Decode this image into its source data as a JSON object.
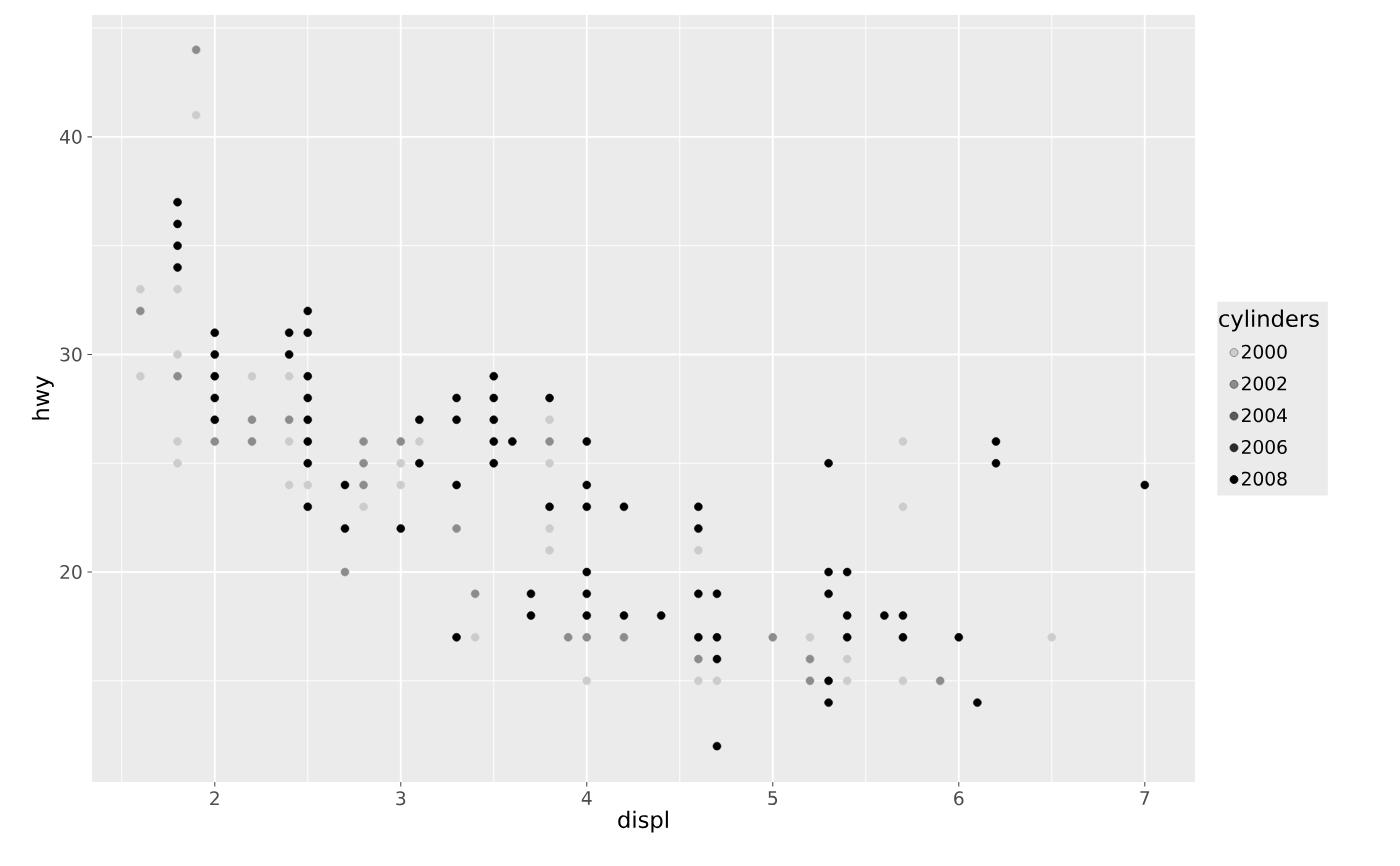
{
  "chart_data": {
    "type": "scatter",
    "xlabel": "displ",
    "ylabel": "hwy",
    "legend_title": "cylinders",
    "xlim": [
      1.34,
      7.27
    ],
    "ylim": [
      10.35,
      45.6
    ],
    "xticks": [
      2,
      3,
      4,
      5,
      6,
      7
    ],
    "yticks": [
      20,
      30,
      40
    ],
    "grid": true,
    "legend": "right",
    "marker": "circle",
    "series": [
      {
        "name": "2000",
        "color": "#cccccc",
        "x": [
          1.6,
          1.6,
          1.8,
          1.8,
          1.8,
          1.8,
          1.9,
          2.2,
          2.4,
          2.4,
          2.4,
          2.5,
          2.8,
          3.0,
          3.0,
          3.1,
          3.4,
          3.8,
          3.8,
          3.8,
          3.8,
          4.0,
          4.6,
          4.6,
          4.7,
          5.2,
          5.4,
          5.4,
          5.7,
          5.7,
          5.7,
          6.5
        ],
        "values": [
          33,
          29,
          33,
          30,
          26,
          25,
          41,
          29,
          29,
          26,
          24,
          24,
          23,
          25,
          24,
          26,
          17,
          27,
          25,
          22,
          21,
          15,
          21,
          15,
          15,
          17,
          16,
          15,
          26,
          23,
          15,
          17
        ]
      },
      {
        "name": "2002",
        "color": "#8c8c8c",
        "x": [
          1.6,
          1.8,
          1.9,
          2.0,
          2.2,
          2.2,
          2.4,
          2.7,
          2.8,
          2.8,
          2.8,
          3.0,
          3.3,
          3.4,
          3.8,
          3.9,
          4.0,
          4.2,
          4.6,
          5.0,
          5.2,
          5.2,
          5.9
        ],
        "values": [
          32,
          29,
          44,
          26,
          27,
          26,
          27,
          20,
          26,
          25,
          24,
          26,
          22,
          19,
          26,
          17,
          17,
          17,
          16,
          17,
          16,
          15,
          15
        ]
      },
      {
        "name": "2004",
        "color": "#595959"
      },
      {
        "name": "2006",
        "color": "#2b2b2b"
      },
      {
        "name": "2008",
        "color": "#000000",
        "x": [
          1.8,
          1.8,
          1.8,
          1.8,
          2.0,
          2.0,
          2.0,
          2.0,
          2.0,
          2.4,
          2.4,
          2.5,
          2.5,
          2.5,
          2.5,
          2.5,
          2.5,
          2.5,
          2.5,
          2.7,
          2.7,
          3.0,
          3.1,
          3.1,
          3.3,
          3.3,
          3.3,
          3.3,
          3.5,
          3.5,
          3.5,
          3.5,
          3.5,
          3.6,
          3.7,
          3.7,
          3.8,
          3.8,
          4.0,
          4.0,
          4.0,
          4.0,
          4.0,
          4.0,
          4.2,
          4.2,
          4.4,
          4.6,
          4.6,
          4.6,
          4.6,
          4.7,
          4.7,
          4.7,
          4.7,
          5.3,
          5.3,
          5.3,
          5.3,
          5.3,
          5.4,
          5.4,
          5.4,
          5.6,
          5.7,
          5.7,
          6.0,
          6.1,
          6.2,
          6.2,
          7.0
        ],
        "values": [
          37,
          36,
          35,
          34,
          31,
          30,
          29,
          28,
          27,
          31,
          30,
          32,
          31,
          29,
          28,
          27,
          26,
          25,
          23,
          24,
          22,
          22,
          27,
          25,
          28,
          27,
          24,
          17,
          29,
          28,
          27,
          26,
          25,
          26,
          19,
          18,
          28,
          23,
          26,
          24,
          23,
          20,
          19,
          18,
          23,
          18,
          18,
          23,
          22,
          19,
          17,
          19,
          17,
          16,
          12,
          25,
          20,
          19,
          15,
          14,
          20,
          18,
          17,
          18,
          18,
          17,
          17,
          14,
          26,
          25,
          24
        ]
      }
    ]
  }
}
